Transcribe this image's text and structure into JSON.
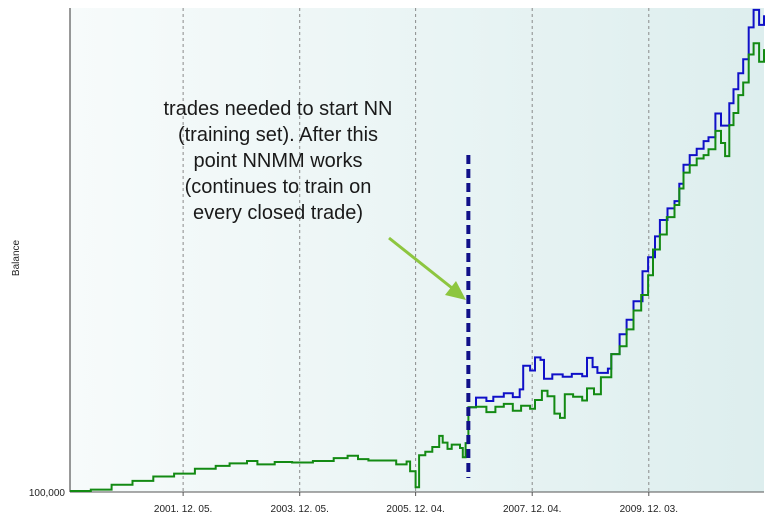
{
  "chart_data": {
    "type": "line",
    "title": "",
    "xlabel": "",
    "ylabel": "Balance",
    "y_tick_labels": [
      "100,000"
    ],
    "x_tick_labels": [
      "2001. 12. 05.",
      "2003. 12. 05.",
      "2005. 12. 04.",
      "2007. 12. 04.",
      "2009. 12. 03."
    ],
    "grid": "vertical dashed at each x tick",
    "x_range": [
      0,
      100
    ],
    "y_range": [
      0,
      100
    ],
    "x_ticks": [
      16.3,
      33.1,
      49.8,
      66.6,
      83.4
    ],
    "marker_x": 57.4,
    "colors": {
      "background": "#eef4f4",
      "series_nnmm": "#1010c8",
      "series_base": "#138a13",
      "marker": "#101088",
      "arrow": "#8dc63f"
    },
    "annotation": {
      "lines": [
        "trades needed to start NN",
        "(training set). After this",
        "point NNMM works",
        "(continues to train on",
        "every closed trade)"
      ]
    },
    "series": [
      {
        "name": "",
        "color": "#1010c8",
        "points": [
          [
            57.4,
            17.5
          ],
          [
            58.5,
            19.5
          ],
          [
            60,
            18.8
          ],
          [
            61,
            19.7
          ],
          [
            62.5,
            20.4
          ],
          [
            63.8,
            19.6
          ],
          [
            64.8,
            21.2
          ],
          [
            65.3,
            26.1
          ],
          [
            66.3,
            25.1
          ],
          [
            67,
            27.8
          ],
          [
            67.8,
            27.3
          ],
          [
            68.3,
            23.4
          ],
          [
            69.5,
            24.3
          ],
          [
            71,
            23.8
          ],
          [
            72.3,
            24.4
          ],
          [
            73.8,
            23.9
          ],
          [
            74.5,
            27.7
          ],
          [
            75.3,
            25.8
          ],
          [
            76,
            24.6
          ],
          [
            77.5,
            25.5
          ],
          [
            78,
            28.5
          ],
          [
            79.2,
            32.6
          ],
          [
            80.2,
            35.6
          ],
          [
            81.2,
            39.4
          ],
          [
            82.5,
            45.6
          ],
          [
            83.3,
            48.5
          ],
          [
            84.3,
            52.8
          ],
          [
            85,
            56.2
          ],
          [
            86.1,
            58.6
          ],
          [
            87.1,
            60.1
          ],
          [
            87.8,
            63.7
          ],
          [
            88.4,
            67.6
          ],
          [
            89.3,
            69.6
          ],
          [
            90.3,
            70.9
          ],
          [
            91.3,
            72.5
          ],
          [
            92,
            73.3
          ],
          [
            93,
            78.2
          ],
          [
            93.8,
            75.7
          ],
          [
            95,
            80.3
          ],
          [
            95.6,
            83.2
          ],
          [
            96.3,
            86.5
          ],
          [
            97,
            89.4
          ],
          [
            97.8,
            96
          ],
          [
            98.5,
            99.6
          ],
          [
            99.3,
            96.5
          ],
          [
            100,
            98.5
          ]
        ]
      },
      {
        "name": "",
        "color": "#138a13",
        "points": [
          [
            0,
            0.2
          ],
          [
            3,
            0.5
          ],
          [
            6,
            1.5
          ],
          [
            9,
            2.3
          ],
          [
            12,
            3.2
          ],
          [
            15,
            3.8
          ],
          [
            18,
            4.8
          ],
          [
            21,
            5.4
          ],
          [
            23,
            5.9
          ],
          [
            25.5,
            6.4
          ],
          [
            27,
            5.7
          ],
          [
            29.5,
            6.2
          ],
          [
            32,
            6.1
          ],
          [
            35,
            6.4
          ],
          [
            38,
            7.0
          ],
          [
            40,
            7.5
          ],
          [
            41.5,
            6.8
          ],
          [
            43,
            6.5
          ],
          [
            45,
            6.5
          ],
          [
            47,
            5.7
          ],
          [
            48.5,
            6.3
          ],
          [
            49,
            4.3
          ],
          [
            49.8,
            1.0
          ],
          [
            50.3,
            7.6
          ],
          [
            51.2,
            8.3
          ],
          [
            52.2,
            9.3
          ],
          [
            53.2,
            11.6
          ],
          [
            53.7,
            10.2
          ],
          [
            54.4,
            8.9
          ],
          [
            55,
            9.8
          ],
          [
            56.2,
            9.1
          ],
          [
            56.6,
            7.2
          ],
          [
            57,
            10.1
          ],
          [
            57.4,
            17.5
          ],
          [
            58.5,
            17.6
          ],
          [
            60,
            16.5
          ],
          [
            61.3,
            17.6
          ],
          [
            62.5,
            18.2
          ],
          [
            63.8,
            16.8
          ],
          [
            65,
            17.8
          ],
          [
            66.3,
            17.2
          ],
          [
            67,
            19
          ],
          [
            68,
            20.9
          ],
          [
            68.8,
            19.8
          ],
          [
            69.8,
            16.2
          ],
          [
            70.6,
            15.3
          ],
          [
            71.3,
            20.2
          ],
          [
            72.5,
            19.7
          ],
          [
            73.8,
            18.9
          ],
          [
            74.5,
            21.4
          ],
          [
            75.5,
            20.2
          ],
          [
            76.5,
            23.7
          ],
          [
            78,
            28.5
          ],
          [
            79.2,
            30.1
          ],
          [
            80.2,
            33.6
          ],
          [
            81.2,
            37.5
          ],
          [
            82.3,
            40.7
          ],
          [
            83.3,
            44.8
          ],
          [
            84,
            50.1
          ],
          [
            85,
            53.2
          ],
          [
            86,
            56.8
          ],
          [
            87.1,
            59.3
          ],
          [
            87.8,
            62.7
          ],
          [
            88.4,
            66.0
          ],
          [
            89.3,
            67.5
          ],
          [
            90.3,
            68.9
          ],
          [
            91.3,
            69.6
          ],
          [
            92,
            70.8
          ],
          [
            93,
            74.6
          ],
          [
            93.8,
            72.1
          ],
          [
            94.4,
            69.4
          ],
          [
            95,
            75.8
          ],
          [
            95.6,
            78.3
          ],
          [
            96.3,
            82.0
          ],
          [
            97,
            84.6
          ],
          [
            97.8,
            90.4
          ],
          [
            98.5,
            92.7
          ],
          [
            99.3,
            88.9
          ],
          [
            100,
            91.5
          ]
        ]
      }
    ]
  }
}
